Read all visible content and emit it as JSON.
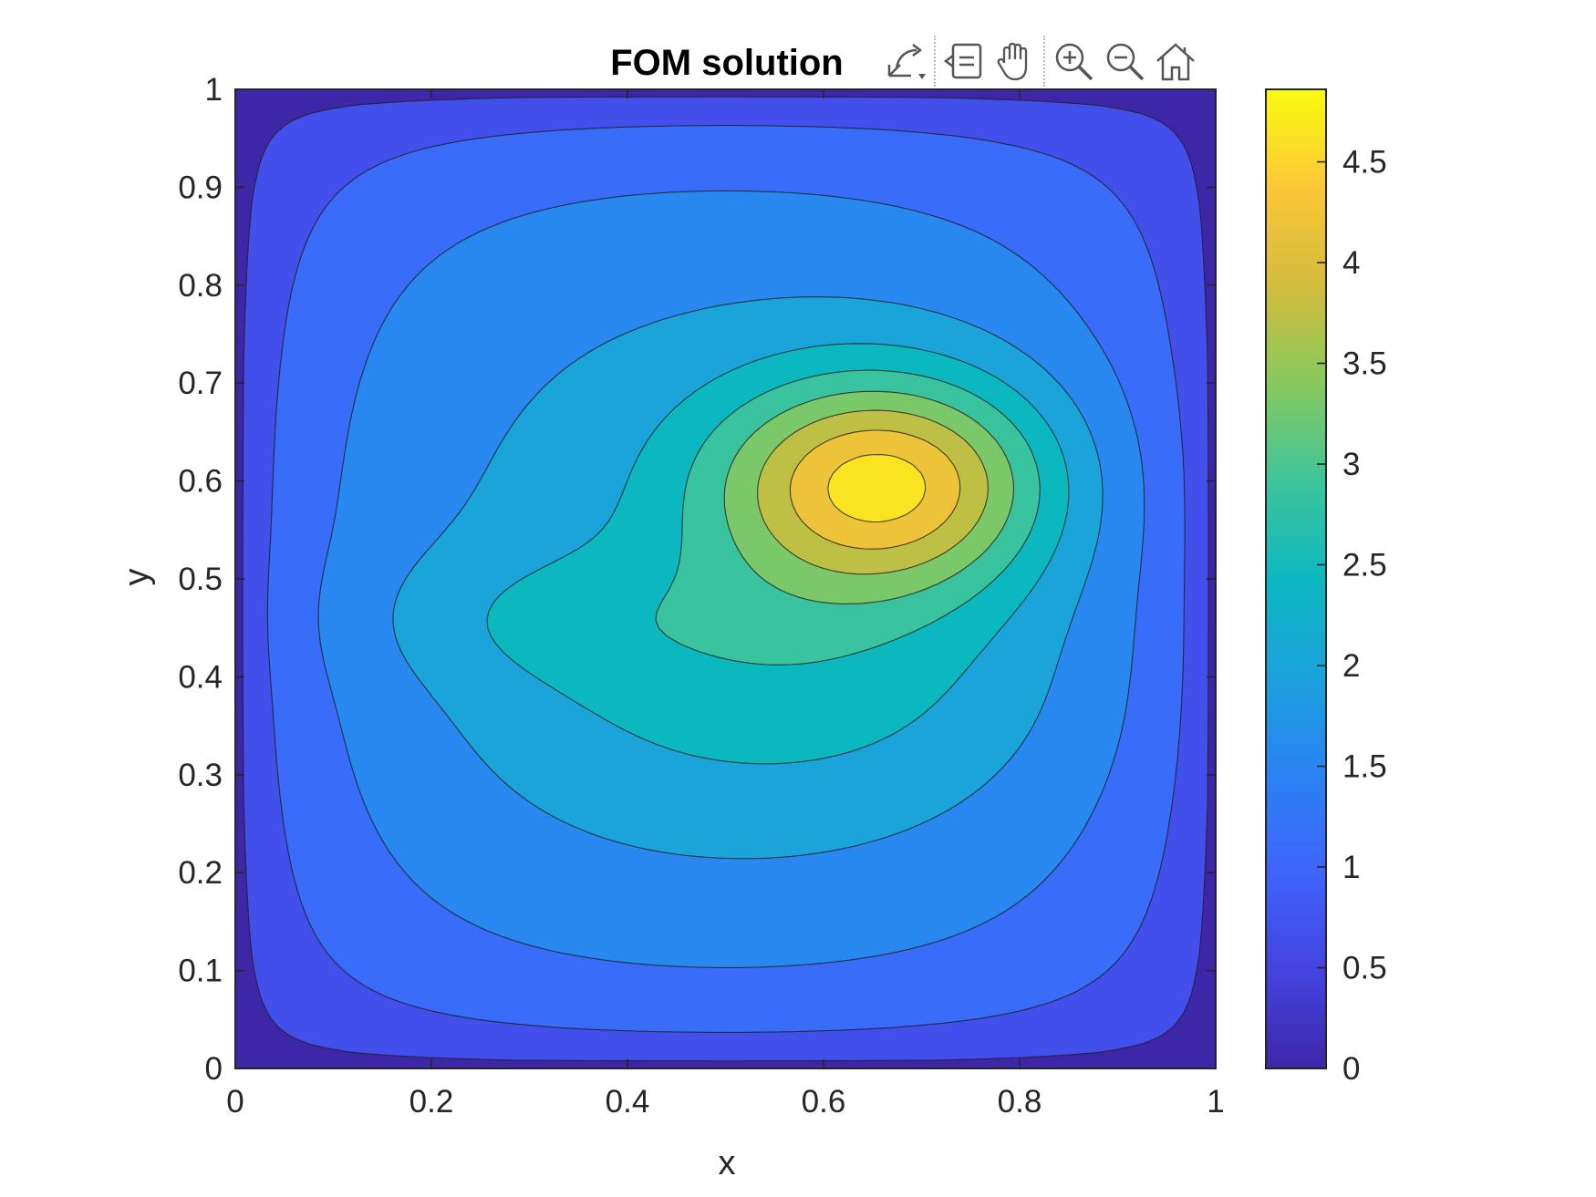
{
  "toolbar": {
    "buttons": [
      {
        "name": "export-icon",
        "tooltip": ""
      },
      {
        "name": "data-tips-icon",
        "tooltip": ""
      },
      {
        "name": "pan-icon",
        "tooltip": ""
      },
      {
        "name": "zoom-in-icon",
        "tooltip": ""
      },
      {
        "name": "zoom-out-icon",
        "tooltip": ""
      },
      {
        "name": "home-icon",
        "tooltip": ""
      }
    ]
  },
  "chart_data": {
    "type": "heatmap",
    "subtype": "filled-contour",
    "title": "FOM solution",
    "xlabel": "x",
    "ylabel": "y",
    "xlim": [
      0,
      1
    ],
    "ylim": [
      0,
      1
    ],
    "xticks": [
      "0",
      "0.2",
      "0.4",
      "0.6",
      "0.8",
      "1"
    ],
    "yticks": [
      "0",
      "0.1",
      "0.2",
      "0.3",
      "0.4",
      "0.5",
      "0.6",
      "0.7",
      "0.8",
      "0.9",
      "1"
    ],
    "colorbar": {
      "limits": [
        0,
        4.86
      ],
      "ticks": [
        "0",
        "0.5",
        "1",
        "1.5",
        "2",
        "2.5",
        "3",
        "3.5",
        "4",
        "4.5"
      ],
      "colormap": "parula"
    },
    "contour_levels": [
      0.44,
      0.88,
      1.32,
      1.77,
      2.21,
      2.65,
      3.09,
      3.53,
      3.98,
      4.42
    ],
    "max_value": 4.86,
    "max_location": [
      0.67,
      0.6
    ],
    "grid": false,
    "box": true
  }
}
